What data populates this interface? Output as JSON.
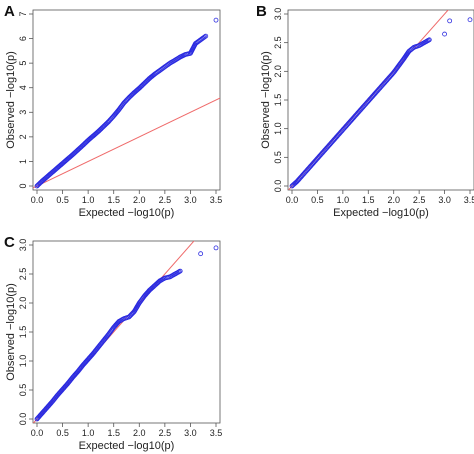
{
  "chart_data": [
    {
      "type": "scatter",
      "panel_label": "A",
      "xlabel": "Expected −log10(p)",
      "ylabel": "Observed −log10(p)",
      "xlim": [
        0,
        3.5
      ],
      "ylim": [
        0,
        7
      ],
      "xticks": [
        0.0,
        0.5,
        1.0,
        1.5,
        2.0,
        2.5,
        3.0,
        3.5
      ],
      "yticks": [
        0,
        1,
        2,
        3,
        4,
        5,
        6,
        7
      ],
      "x_tick_labels": [
        "0.0",
        "0.5",
        "1.0",
        "1.5",
        "2.0",
        "2.5",
        "3.0",
        "3.5"
      ],
      "y_tick_labels": [
        "0",
        "1",
        "2",
        "3",
        "4",
        "5",
        "6",
        "7"
      ],
      "reference_line": "y = x",
      "points": [
        [
          0.0,
          0.0
        ],
        [
          0.1,
          0.2
        ],
        [
          0.2,
          0.38
        ],
        [
          0.3,
          0.56
        ],
        [
          0.4,
          0.74
        ],
        [
          0.5,
          0.92
        ],
        [
          0.6,
          1.1
        ],
        [
          0.7,
          1.28
        ],
        [
          0.8,
          1.47
        ],
        [
          0.9,
          1.66
        ],
        [
          1.0,
          1.86
        ],
        [
          1.1,
          2.04
        ],
        [
          1.2,
          2.22
        ],
        [
          1.3,
          2.42
        ],
        [
          1.4,
          2.62
        ],
        [
          1.5,
          2.85
        ],
        [
          1.6,
          3.1
        ],
        [
          1.7,
          3.38
        ],
        [
          1.8,
          3.6
        ],
        [
          1.9,
          3.8
        ],
        [
          2.0,
          3.98
        ],
        [
          2.1,
          4.18
        ],
        [
          2.2,
          4.38
        ],
        [
          2.3,
          4.55
        ],
        [
          2.4,
          4.7
        ],
        [
          2.5,
          4.85
        ],
        [
          2.6,
          5.0
        ],
        [
          2.7,
          5.12
        ],
        [
          2.8,
          5.25
        ],
        [
          2.9,
          5.35
        ],
        [
          3.0,
          5.4
        ],
        [
          3.1,
          5.8
        ],
        [
          3.2,
          5.95
        ],
        [
          3.3,
          6.1
        ],
        [
          3.5,
          6.75
        ]
      ],
      "colors": {
        "points": "#2a2ae0",
        "reference": "#ef6a6a"
      }
    },
    {
      "type": "scatter",
      "panel_label": "B",
      "xlabel": "Expected −log10(p)",
      "ylabel": "Observed −log10(p)",
      "xlim": [
        0,
        3.5
      ],
      "ylim": [
        0,
        3.0
      ],
      "xticks": [
        0.0,
        0.5,
        1.0,
        1.5,
        2.0,
        2.5,
        3.0,
        3.5
      ],
      "yticks": [
        0.0,
        0.5,
        1.0,
        1.5,
        2.0,
        2.5,
        3.0
      ],
      "x_tick_labels": [
        "0.0",
        "0.5",
        "1.0",
        "1.5",
        "2.0",
        "2.5",
        "3.0",
        "3.5"
      ],
      "y_tick_labels": [
        "0.0",
        "0.5",
        "1.0",
        "1.5",
        "2.0",
        "2.5",
        "3.0"
      ],
      "reference_line": "y = x",
      "points": [
        [
          0.0,
          0.0
        ],
        [
          0.1,
          0.08
        ],
        [
          0.2,
          0.18
        ],
        [
          0.3,
          0.28
        ],
        [
          0.4,
          0.38
        ],
        [
          0.5,
          0.48
        ],
        [
          0.6,
          0.58
        ],
        [
          0.7,
          0.68
        ],
        [
          0.8,
          0.78
        ],
        [
          0.9,
          0.88
        ],
        [
          1.0,
          0.98
        ],
        [
          1.1,
          1.08
        ],
        [
          1.2,
          1.18
        ],
        [
          1.3,
          1.28
        ],
        [
          1.4,
          1.38
        ],
        [
          1.5,
          1.48
        ],
        [
          1.6,
          1.58
        ],
        [
          1.7,
          1.68
        ],
        [
          1.8,
          1.78
        ],
        [
          1.9,
          1.88
        ],
        [
          2.0,
          1.98
        ],
        [
          2.1,
          2.1
        ],
        [
          2.2,
          2.22
        ],
        [
          2.3,
          2.35
        ],
        [
          2.4,
          2.42
        ],
        [
          2.5,
          2.45
        ],
        [
          2.6,
          2.5
        ],
        [
          2.7,
          2.55
        ],
        [
          3.0,
          2.65
        ],
        [
          3.1,
          2.88
        ],
        [
          3.5,
          2.9
        ]
      ],
      "colors": {
        "points": "#2a2ae0",
        "reference": "#ef6a6a"
      }
    },
    {
      "type": "scatter",
      "panel_label": "C",
      "xlabel": "Expected −log10(p)",
      "ylabel": "Observed −log10(p)",
      "xlim": [
        0,
        3.5
      ],
      "ylim": [
        0,
        3.0
      ],
      "xticks": [
        0.0,
        0.5,
        1.0,
        1.5,
        2.0,
        2.5,
        3.0,
        3.5
      ],
      "yticks": [
        0.0,
        0.5,
        1.0,
        1.5,
        2.0,
        2.5,
        3.0
      ],
      "x_tick_labels": [
        "0.0",
        "0.5",
        "1.0",
        "1.5",
        "2.0",
        "2.5",
        "3.0",
        "3.5"
      ],
      "y_tick_labels": [
        "0.0",
        "0.5",
        "1.0",
        "1.5",
        "2.0",
        "2.5",
        "3.0"
      ],
      "reference_line": "y = x",
      "points": [
        [
          0.0,
          0.0
        ],
        [
          0.1,
          0.1
        ],
        [
          0.2,
          0.2
        ],
        [
          0.3,
          0.3
        ],
        [
          0.4,
          0.41
        ],
        [
          0.5,
          0.51
        ],
        [
          0.6,
          0.61
        ],
        [
          0.7,
          0.72
        ],
        [
          0.8,
          0.82
        ],
        [
          0.9,
          0.93
        ],
        [
          1.0,
          1.03
        ],
        [
          1.1,
          1.13
        ],
        [
          1.2,
          1.24
        ],
        [
          1.3,
          1.35
        ],
        [
          1.4,
          1.46
        ],
        [
          1.5,
          1.58
        ],
        [
          1.6,
          1.68
        ],
        [
          1.7,
          1.73
        ],
        [
          1.8,
          1.76
        ],
        [
          1.9,
          1.85
        ],
        [
          2.0,
          2.0
        ],
        [
          2.1,
          2.12
        ],
        [
          2.2,
          2.22
        ],
        [
          2.3,
          2.3
        ],
        [
          2.4,
          2.38
        ],
        [
          2.5,
          2.43
        ],
        [
          2.6,
          2.45
        ],
        [
          2.8,
          2.55
        ],
        [
          3.2,
          2.85
        ],
        [
          3.5,
          2.95
        ]
      ],
      "colors": {
        "points": "#2a2ae0",
        "reference": "#ef6a6a"
      }
    }
  ]
}
